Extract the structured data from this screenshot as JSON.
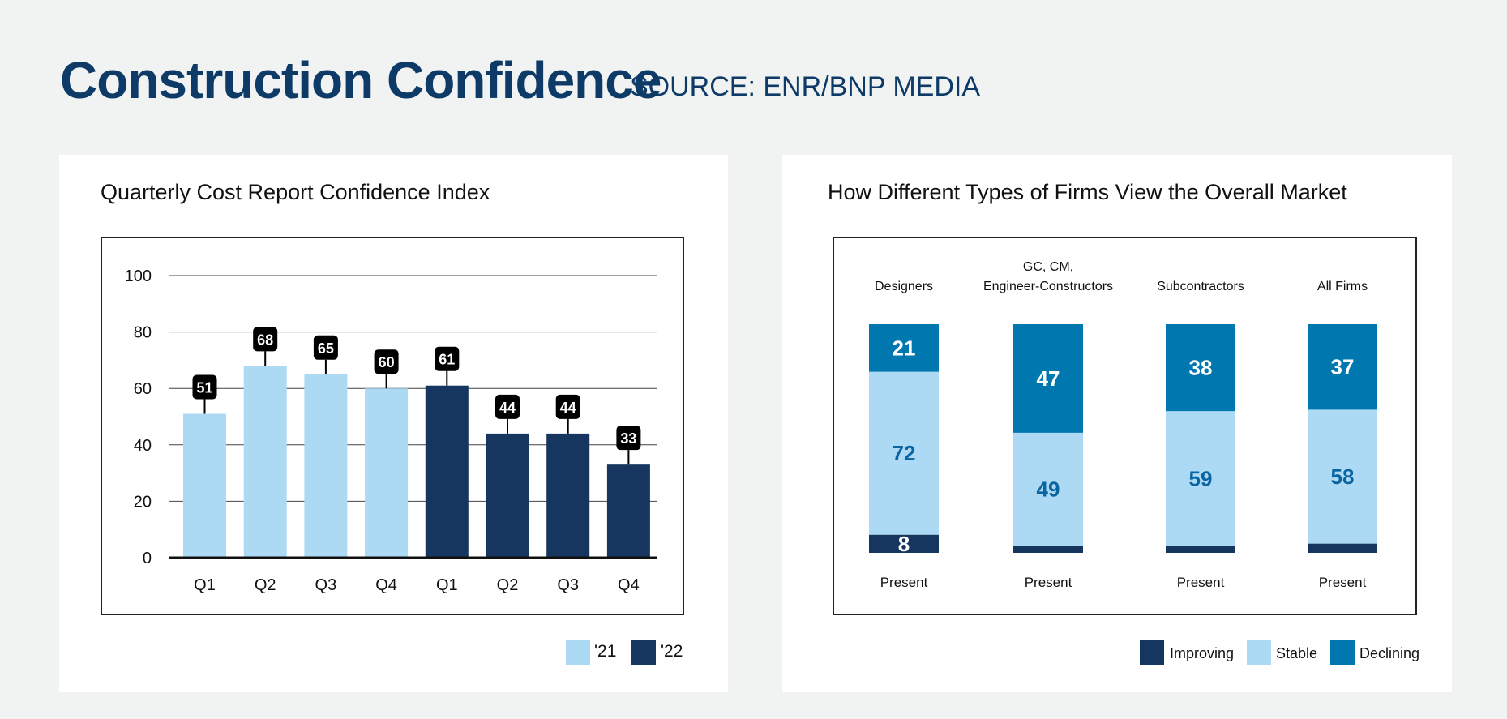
{
  "header": {
    "title": "Construction Confidence",
    "source": "SOURCE: ENR/BNP MEDIA"
  },
  "chart_data": [
    {
      "type": "bar",
      "title": "Quarterly Cost Report Confidence Index",
      "categories": [
        "Q1",
        "Q2",
        "Q3",
        "Q4",
        "Q1",
        "Q2",
        "Q3",
        "Q4"
      ],
      "values": [
        51,
        68,
        65,
        60,
        61,
        44,
        44,
        33
      ],
      "series_by_bar": [
        "'21",
        "'21",
        "'21",
        "'21",
        "'22",
        "'22",
        "'22",
        "'22"
      ],
      "legend": [
        {
          "name": "'21",
          "color": "#acdaf4"
        },
        {
          "name": "'22",
          "color": "#17365f"
        }
      ],
      "legend_placement": "bottom-right",
      "yticks": [
        0,
        20,
        40,
        60,
        80,
        100
      ],
      "ylim": [
        0,
        100
      ],
      "grid": true
    },
    {
      "type": "bar",
      "stacked": true,
      "title": "How Different Types of Firms View the Overall Market",
      "categories": [
        "Designers",
        "GC, CM, Engineer-Constructors",
        "Subcontractors",
        "All Firms"
      ],
      "category_label_lines": [
        [
          "Designers"
        ],
        [
          "GC, CM,",
          "Engineer-Constructors"
        ],
        [
          "Subcontractors"
        ],
        [
          "All Firms"
        ]
      ],
      "xlabel_each": "Present",
      "series": [
        {
          "name": "Improving",
          "color": "#17365f",
          "values": [
            8,
            3,
            3,
            4
          ]
        },
        {
          "name": "Stable",
          "color": "#acdaf4",
          "values": [
            72,
            49,
            59,
            58
          ]
        },
        {
          "name": "Declining",
          "color": "#0077ae",
          "values": [
            21,
            47,
            38,
            37
          ]
        }
      ],
      "legend_placement": "bottom-right"
    }
  ]
}
